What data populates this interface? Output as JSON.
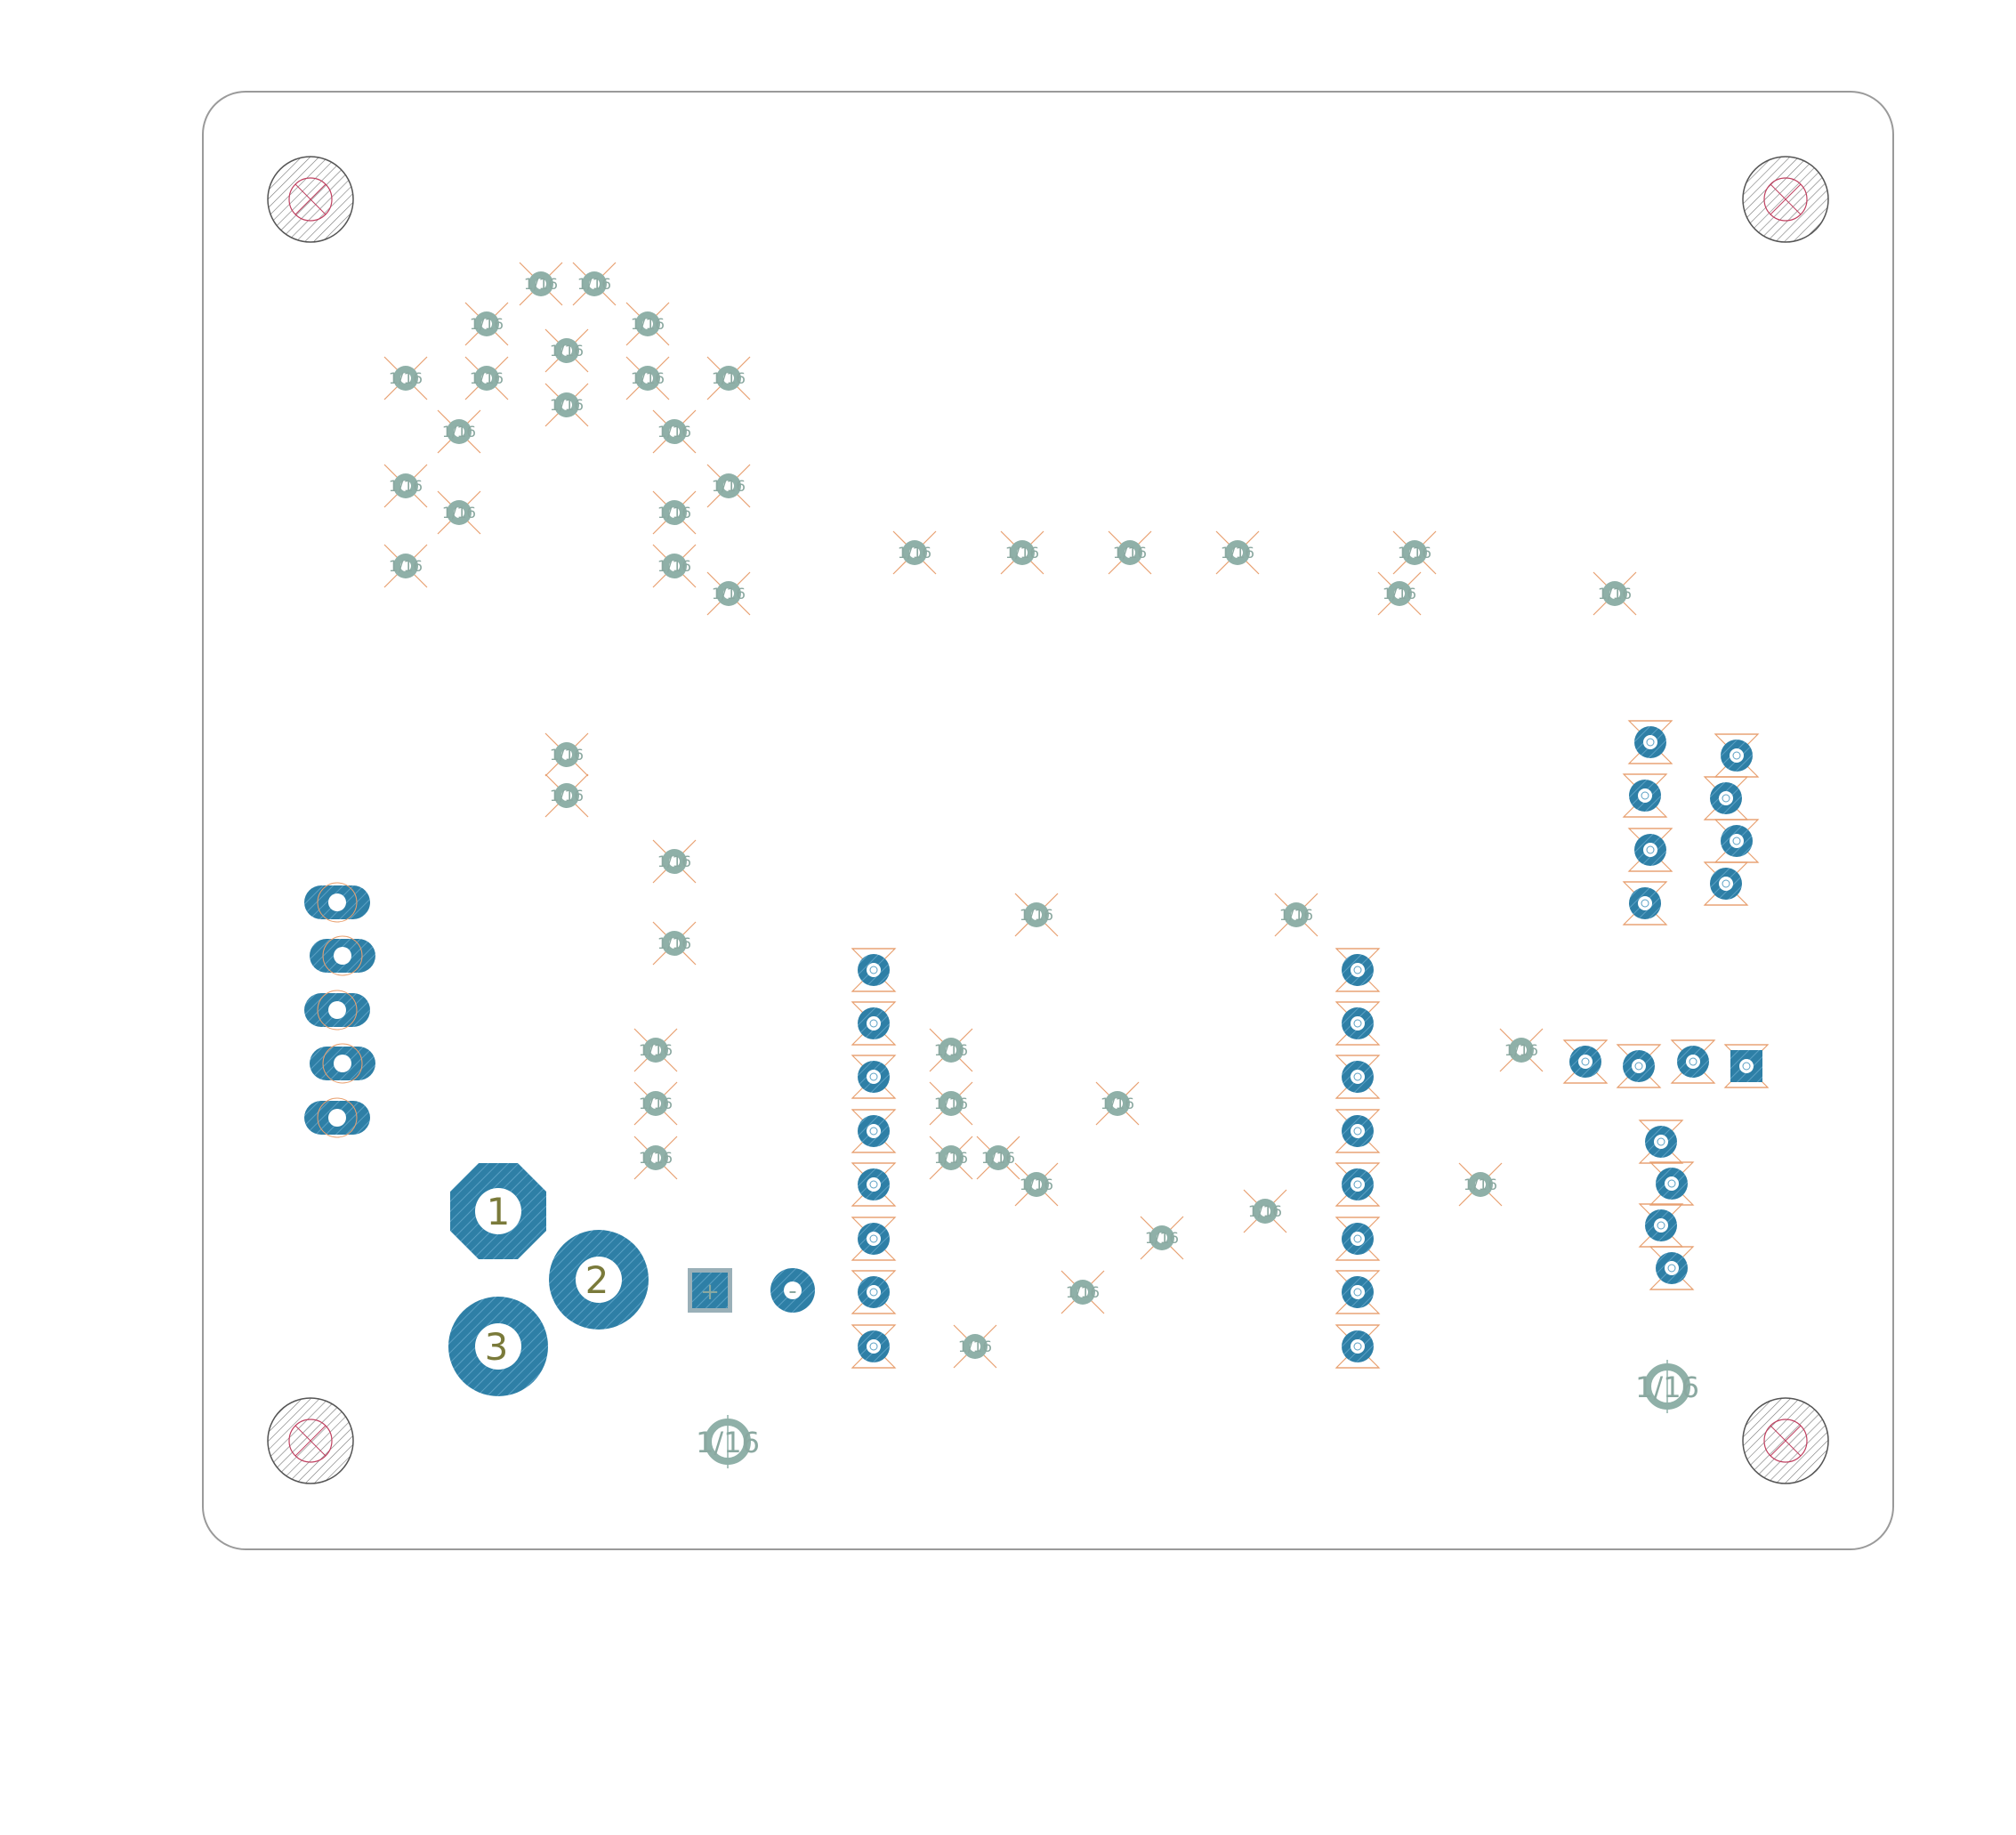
{
  "labels": {
    "via": "1/16",
    "pad_1": "1",
    "pad_2": "2",
    "pad_3": "3",
    "pad_plus": "+",
    "pad_minus": "-"
  },
  "colors": {
    "outline": "#9a9a9a",
    "copper": "#2e7fa6",
    "via_ring": "#8fb0a8",
    "keepout": "#e8a070",
    "hole_hatch": "#777777",
    "hole_inner": "#c04060",
    "background": "#ffffff"
  }
}
